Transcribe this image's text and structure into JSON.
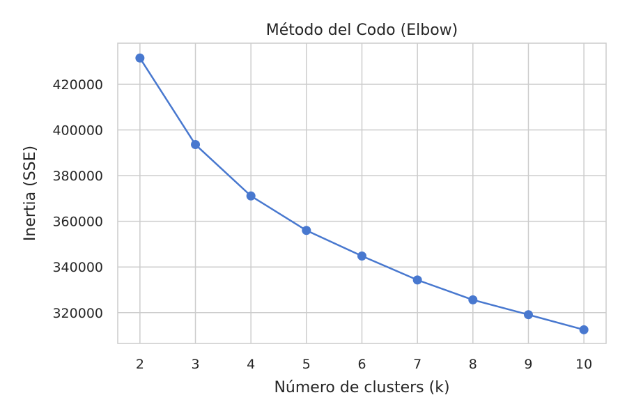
{
  "chart_data": {
    "type": "line",
    "title": "Método del Codo (Elbow)",
    "xlabel": "Número de clusters (k)",
    "ylabel": "Inertia (SSE)",
    "x": [
      2,
      3,
      4,
      5,
      6,
      7,
      8,
      9,
      10
    ],
    "series": [
      {
        "values": [
          431500,
          393600,
          371100,
          356000,
          344800,
          334300,
          325600,
          319100,
          312500
        ]
      }
    ],
    "xlim": [
      1.6,
      10.4
    ],
    "ylim": [
      306500,
      438000
    ],
    "xticks": [
      2,
      3,
      4,
      5,
      6,
      7,
      8,
      9,
      10
    ],
    "yticks": [
      320000,
      340000,
      360000,
      380000,
      400000,
      420000
    ],
    "xtick_labels": [
      "2",
      "3",
      "4",
      "5",
      "6",
      "7",
      "8",
      "9",
      "10"
    ],
    "ytick_labels": [
      "320000",
      "340000",
      "360000",
      "380000",
      "400000",
      "420000"
    ],
    "grid": true,
    "marker": "circle",
    "colors": {
      "line": "#4878cf",
      "grid": "#cccccc",
      "spine": "#cccccc",
      "text": "#262626",
      "background": "#ffffff"
    }
  }
}
